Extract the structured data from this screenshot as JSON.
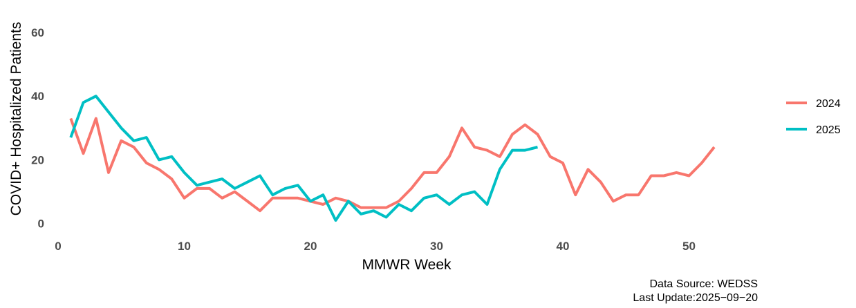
{
  "chart_data": {
    "type": "line",
    "title": "",
    "xlabel": "MMWR Week",
    "ylabel": "COVID+ Hospitalized Patients",
    "xlim": [
      0,
      56
    ],
    "ylim": [
      -0.5,
      68
    ],
    "xticks": [
      0,
      10,
      20,
      30,
      40,
      50
    ],
    "yticks": [
      0,
      20,
      40,
      60
    ],
    "grid": false,
    "legend": "right",
    "series": [
      {
        "name": "2024",
        "color": "#F8766D",
        "x": [
          1,
          2,
          3,
          4,
          5,
          6,
          7,
          8,
          9,
          10,
          11,
          12,
          13,
          14,
          15,
          16,
          17,
          18,
          19,
          20,
          21,
          22,
          23,
          24,
          25,
          26,
          27,
          28,
          29,
          30,
          31,
          32,
          33,
          34,
          35,
          36,
          37,
          38,
          39,
          40,
          41,
          42,
          43,
          44,
          45,
          46,
          47,
          48,
          49,
          50,
          51,
          52
        ],
        "y": [
          33,
          22,
          33,
          16,
          26,
          24,
          19,
          17,
          14,
          8,
          11,
          11,
          8,
          10,
          7,
          4,
          8,
          8,
          8,
          7,
          6,
          8,
          7,
          5,
          5,
          5,
          7,
          11,
          16,
          16,
          21,
          30,
          24,
          23,
          21,
          28,
          31,
          28,
          21,
          19,
          9,
          17,
          13,
          7,
          9,
          9,
          15,
          15,
          16,
          15,
          19,
          24
        ]
      },
      {
        "name": "2025",
        "color": "#00BFC4",
        "x": [
          1,
          2,
          3,
          4,
          5,
          6,
          7,
          8,
          9,
          10,
          11,
          12,
          13,
          14,
          15,
          16,
          17,
          18,
          19,
          20,
          21,
          22,
          23,
          24,
          25,
          26,
          27,
          28,
          29,
          30,
          31,
          32,
          33,
          34,
          35,
          36,
          37,
          38
        ],
        "y": [
          27,
          38,
          40,
          35,
          30,
          26,
          27,
          20,
          21,
          16,
          12,
          13,
          14,
          11,
          13,
          15,
          9,
          11,
          12,
          7,
          9,
          1,
          7,
          3,
          4,
          2,
          6,
          4,
          8,
          9,
          6,
          9,
          10,
          6,
          17,
          23,
          23,
          24
        ]
      }
    ]
  },
  "caption": {
    "source": "Data Source: WEDSS",
    "update": "Last Update:2025−09−20"
  }
}
